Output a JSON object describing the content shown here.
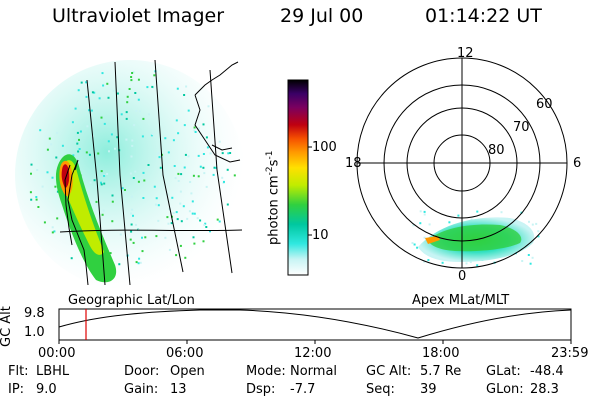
{
  "header": {
    "instrument": "Ultraviolet Imager",
    "date": "29 Jul 00",
    "time": "01:14:22 UT"
  },
  "colors": {
    "background": "#ffffff",
    "ink": "#000000",
    "cursor": "#e00000",
    "colorbar": [
      "#000000",
      "#3a0066",
      "#7a0060",
      "#c00010",
      "#f55000",
      "#ff9900",
      "#ffe000",
      "#c0ec00",
      "#30d040",
      "#00c8a0",
      "#30e8e0",
      "#c8f4f4",
      "#ffffff"
    ]
  },
  "left_panel": {
    "caption": "Geographic Lat/Lon"
  },
  "colorbar": {
    "label": "photon cm",
    "label_sup1": "-2",
    "label_mid": "s",
    "label_sup2": "-1",
    "tick_labels": [
      "100",
      "10"
    ]
  },
  "right_panel": {
    "caption": "Apex MLat/MLT",
    "mlt_labels": {
      "top": "12",
      "bottom": "0",
      "left": "18",
      "right": "6"
    },
    "lat_labels": [
      "60",
      "70",
      "80"
    ]
  },
  "timeline": {
    "y_label": "GC Alt",
    "y_ticks": [
      "9.8",
      "1.0"
    ],
    "x_ticks": [
      "00:00",
      "06:00",
      "12:00",
      "18:00",
      "23:59"
    ]
  },
  "info": {
    "flt_label": "Flt:",
    "flt_value": "LBHL",
    "ip_label": "IP:",
    "ip_value": "9.0",
    "door_label": "Door:",
    "door_value": "Open",
    "gain_label": "Gain:",
    "gain_value": "13",
    "mode_label": "Mode:",
    "mode_value": "Normal",
    "dsp_label": "Dsp:",
    "dsp_value": "-7.7",
    "gcalt_label": "GC Alt:",
    "gcalt_value": "5.7 Re",
    "seq_label": "Seq:",
    "seq_value": "39",
    "glat_label": "GLat:",
    "glat_value": "-48.4",
    "glon_label": "GLon:",
    "glon_value": "28.3"
  }
}
